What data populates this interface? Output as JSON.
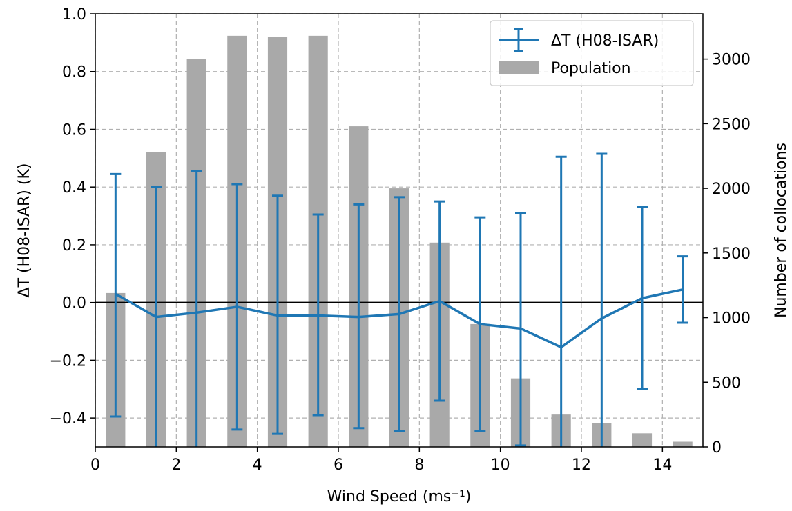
{
  "colors": {
    "line": "#1f77b4",
    "bar": "#a9a9a9",
    "zero_line": "#000000",
    "grid": "#b0b0b0"
  },
  "chart_data": {
    "type": "bar",
    "xlabel": "Wind Speed (ms⁻¹)",
    "ylabel_left": "ΔT (H08-ISAR) (K)",
    "ylabel_right": "Number of collocations",
    "xlim": [
      0,
      15
    ],
    "ylim_left": [
      -0.5,
      1.0
    ],
    "ylim_right": [
      0,
      3350
    ],
    "x_ticks": [
      0,
      2,
      4,
      6,
      8,
      10,
      12,
      14
    ],
    "y_ticks_left": [
      -0.4,
      -0.2,
      0.0,
      0.2,
      0.4,
      0.6,
      0.8,
      1.0
    ],
    "y_tick_labels_left": [
      "−0.4",
      "−0.2",
      "0.0",
      "0.2",
      "0.4",
      "0.6",
      "0.8",
      "1.0"
    ],
    "y_ticks_right": [
      0,
      500,
      1000,
      1500,
      2000,
      2500,
      3000
    ],
    "grid": true,
    "zero_line": 0.0,
    "legend": {
      "placement": "top-right",
      "entries": [
        "ΔT (H08-ISAR)",
        "Population"
      ]
    },
    "series": [
      {
        "name": "ΔT (H08-ISAR)",
        "type": "line-errorbar",
        "x": [
          0.5,
          1.5,
          2.5,
          3.5,
          4.5,
          5.5,
          6.5,
          7.5,
          8.5,
          9.5,
          10.5,
          11.5,
          12.5,
          13.5,
          14.5
        ],
        "y": [
          0.03,
          -0.05,
          -0.035,
          -0.015,
          -0.045,
          -0.045,
          -0.05,
          -0.04,
          0.005,
          -0.075,
          -0.09,
          -0.155,
          -0.055,
          0.015,
          0.045
        ],
        "yerr_lower": [
          -0.395,
          -0.5,
          -0.5,
          -0.44,
          -0.455,
          -0.39,
          -0.435,
          -0.445,
          -0.34,
          -0.445,
          -0.495,
          -0.5,
          -0.5,
          -0.3,
          -0.07
        ],
        "yerr_upper": [
          0.445,
          0.4,
          0.455,
          0.41,
          0.37,
          0.305,
          0.34,
          0.365,
          0.35,
          0.295,
          0.31,
          0.505,
          0.515,
          0.33,
          0.16
        ]
      },
      {
        "name": "Population",
        "type": "bar",
        "x": [
          0.5,
          1.5,
          2.5,
          3.5,
          4.5,
          5.5,
          6.5,
          7.5,
          8.5,
          9.5,
          10.5,
          11.5,
          12.5,
          13.5,
          14.5
        ],
        "values": [
          1190,
          2280,
          3000,
          3180,
          3170,
          3180,
          2480,
          2000,
          1580,
          950,
          530,
          250,
          185,
          105,
          40
        ]
      }
    ]
  }
}
